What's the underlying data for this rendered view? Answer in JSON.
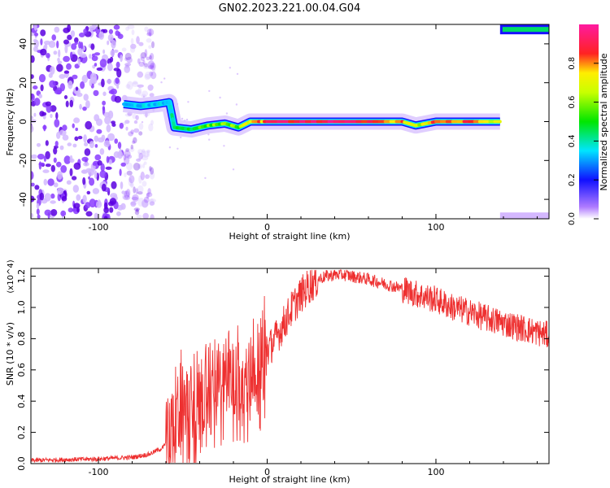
{
  "title": "GN02.2023.221.00.04.G04",
  "chart_data": [
    {
      "type": "heatmap",
      "xlabel": "Height of straight line (km)",
      "ylabel": "Frequency (Hz)",
      "xlim": [
        -140,
        167
      ],
      "ylim": [
        -50,
        50
      ],
      "xticks": [
        "-100",
        "0",
        "100"
      ],
      "yticks": [
        "-40",
        "-20",
        "0",
        "20",
        "40"
      ],
      "colorbar": {
        "label": "Normalized spectral amplitude",
        "range": [
          0,
          1
        ],
        "ticks": [
          "0.0",
          "0.2",
          "0.4",
          "0.6",
          "0.8"
        ]
      },
      "ridge": [
        {
          "x": -85,
          "y": 9,
          "amp": 0.25
        },
        {
          "x": -75,
          "y": 8,
          "amp": 0.3
        },
        {
          "x": -65,
          "y": 9,
          "amp": 0.35
        },
        {
          "x": -58,
          "y": 10,
          "amp": 0.35
        },
        {
          "x": -55,
          "y": -3,
          "amp": 0.45
        },
        {
          "x": -45,
          "y": -4,
          "amp": 0.5
        },
        {
          "x": -35,
          "y": -2,
          "amp": 0.55
        },
        {
          "x": -25,
          "y": -1,
          "amp": 0.6
        },
        {
          "x": -17,
          "y": -3,
          "amp": 0.55
        },
        {
          "x": -10,
          "y": 0,
          "amp": 0.75
        },
        {
          "x": 0,
          "y": 0,
          "amp": 0.85
        },
        {
          "x": 20,
          "y": 0,
          "amp": 0.95
        },
        {
          "x": 40,
          "y": 0,
          "amp": 0.9
        },
        {
          "x": 60,
          "y": 0,
          "amp": 0.85
        },
        {
          "x": 80,
          "y": 0,
          "amp": 0.8
        },
        {
          "x": 88,
          "y": -2,
          "amp": 0.6
        },
        {
          "x": 100,
          "y": 0,
          "amp": 0.85
        },
        {
          "x": 120,
          "y": 0,
          "amp": 0.8
        },
        {
          "x": 138,
          "y": 0,
          "amp": 0.6
        }
      ],
      "noise_region_x": [
        -140,
        -75
      ],
      "edge_band": {
        "x": [
          138,
          167
        ],
        "y": 47
      }
    },
    {
      "type": "line",
      "xlabel": "Height of straight line (km)",
      "ylabel": "SNR (10 * v/v)",
      "ylabel_multiplier": "(x10^4)",
      "xlim": [
        -140,
        167
      ],
      "ylim": [
        0,
        1.25
      ],
      "xticks": [
        "-100",
        "0",
        "100"
      ],
      "yticks": [
        "0.0",
        "0.2",
        "0.4",
        "0.6",
        "0.8",
        "1.0",
        "1.2"
      ],
      "color": "#ee3030",
      "series": [
        {
          "x": [
            -140,
            -100,
            -80,
            -70,
            -62,
            -58,
            -55,
            -50,
            -45,
            -40,
            -35,
            -30,
            -25,
            -20,
            -15,
            -10,
            -5,
            0,
            5,
            10,
            15,
            20,
            25,
            30,
            35,
            40,
            45,
            50,
            60,
            70,
            80,
            90,
            100,
            110,
            120,
            130,
            140,
            150,
            160,
            167
          ],
          "values": [
            0.02,
            0.03,
            0.04,
            0.06,
            0.1,
            0.16,
            0.25,
            0.3,
            0.28,
            0.35,
            0.4,
            0.45,
            0.5,
            0.55,
            0.45,
            0.55,
            0.6,
            0.72,
            0.8,
            0.9,
            1.0,
            1.08,
            1.14,
            1.18,
            1.2,
            1.21,
            1.21,
            1.2,
            1.18,
            1.15,
            1.12,
            1.08,
            1.05,
            1.0,
            0.97,
            0.93,
            0.9,
            0.87,
            0.84,
            0.82
          ]
        }
      ]
    }
  ]
}
